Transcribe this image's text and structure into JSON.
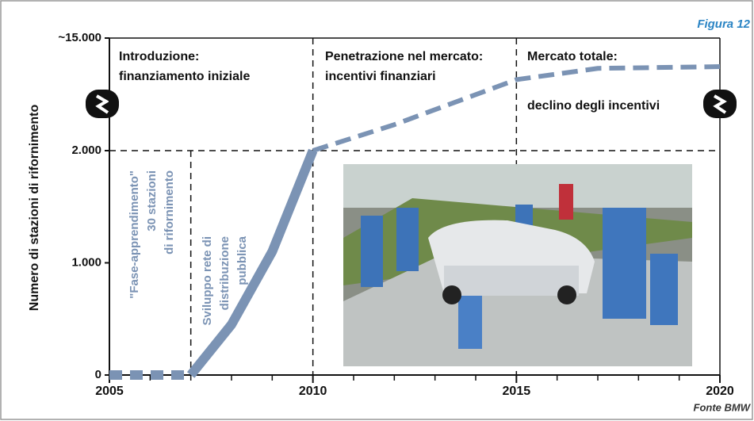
{
  "chart_data": {
    "type": "line",
    "title": "Figura 12",
    "source": "Fonte BMW",
    "y_label": "Numero di stazioni di rifornimento",
    "xlim": [
      2005,
      2020
    ],
    "xticks": [
      2005,
      2010,
      2015,
      2020
    ],
    "xminorticks": [
      2006,
      2007,
      2008,
      2009,
      2011,
      2012,
      2013,
      2014,
      2016,
      2017,
      2018,
      2019
    ],
    "ylim": [
      0,
      15000
    ],
    "y_axis_break": 2000,
    "yticks": [
      0,
      {
        "value": 1000,
        "label": "1.000"
      },
      {
        "value": 2000,
        "label": "2.000"
      },
      {
        "value": 15000,
        "label": "~15.000"
      }
    ],
    "reference_lines": {
      "x": [
        2007,
        2010,
        2015
      ],
      "y": [
        2000
      ]
    },
    "series": [
      {
        "color": "#7b93b4",
        "x": [
          2005,
          2006,
          2007
        ],
        "values": [
          0,
          0,
          0
        ]
      },
      {
        "color": "#7b93b4",
        "x": [
          2007,
          2008,
          2009,
          2010
        ],
        "values": [
          0,
          450,
          1100,
          2000
        ]
      },
      {
        "color": "#7b93b4",
        "x": [
          2010,
          2012,
          2015,
          2017,
          2020
        ],
        "values": [
          2000,
          5000,
          10200,
          11500,
          11700
        ]
      }
    ],
    "phases": [
      [
        "Introduzione:",
        "finanziamento iniziale"
      ],
      [
        "Penetrazione nel mercato:",
        "incentivi finanziari"
      ],
      [
        "Mercato totale:",
        "declino degli incentivi"
      ]
    ],
    "vertical_notes": [
      [
        "\"Fase-apprendimento\"",
        "30 stazioni",
        "di rifornimento"
      ],
      [
        "Sviluppo rete di",
        "distribuzione",
        "pubblica"
      ]
    ]
  }
}
